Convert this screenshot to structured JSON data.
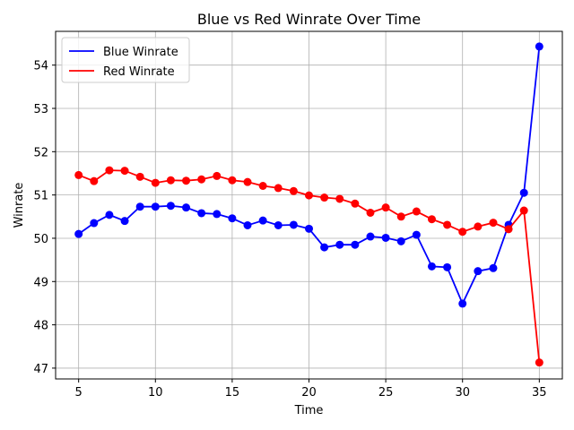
{
  "chart_data": {
    "type": "line",
    "title": "Blue vs Red Winrate Over Time",
    "xlabel": "Time",
    "ylabel": "Winrate",
    "xlim": [
      3.5,
      36.5
    ],
    "ylim": [
      46.75,
      54.78
    ],
    "xticks": [
      5,
      10,
      15,
      20,
      25,
      30,
      35
    ],
    "yticks": [
      47,
      48,
      49,
      50,
      51,
      52,
      53,
      54
    ],
    "grid": true,
    "legend_position": "top-left",
    "x": [
      5,
      6,
      7,
      8,
      9,
      10,
      11,
      12,
      13,
      14,
      15,
      16,
      17,
      18,
      19,
      20,
      21,
      22,
      23,
      24,
      25,
      26,
      27,
      28,
      29,
      30,
      31,
      32,
      33,
      34,
      35
    ],
    "series": [
      {
        "name": "Blue Winrate",
        "color": "#0000ff",
        "values": [
          50.1,
          50.35,
          50.54,
          50.4,
          50.73,
          50.73,
          50.75,
          50.71,
          50.58,
          50.56,
          50.46,
          50.3,
          50.41,
          50.3,
          50.31,
          50.22,
          49.79,
          49.85,
          49.85,
          50.04,
          50.01,
          49.93,
          50.08,
          49.35,
          49.33,
          48.49,
          49.24,
          49.31,
          50.31,
          51.05,
          54.43
        ]
      },
      {
        "name": "Red Winrate",
        "color": "#ff0000",
        "values": [
          51.46,
          51.32,
          51.57,
          51.56,
          51.42,
          51.28,
          51.34,
          51.33,
          51.36,
          51.44,
          51.34,
          51.3,
          51.21,
          51.16,
          51.09,
          50.99,
          50.94,
          50.91,
          50.8,
          50.59,
          50.71,
          50.5,
          50.62,
          50.44,
          50.31,
          50.15,
          50.27,
          50.36,
          50.21,
          50.64,
          47.13
        ]
      }
    ]
  }
}
